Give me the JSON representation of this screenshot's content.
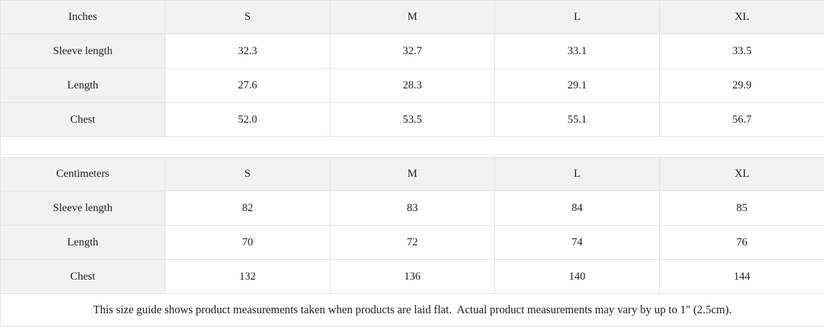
{
  "tables": [
    {
      "unit_label": "Inches",
      "size_headers": [
        "S",
        "M",
        "L",
        "XL"
      ],
      "rows": [
        {
          "label": "Sleeve length",
          "values": [
            "32.3",
            "32.7",
            "33.1",
            "33.5"
          ]
        },
        {
          "label": "Length",
          "values": [
            "27.6",
            "28.3",
            "29.1",
            "29.9"
          ]
        },
        {
          "label": "Chest",
          "values": [
            "52.0",
            "53.5",
            "55.1",
            "56.7"
          ]
        }
      ]
    },
    {
      "unit_label": "Centimeters",
      "size_headers": [
        "S",
        "M",
        "L",
        "XL"
      ],
      "rows": [
        {
          "label": "Sleeve length",
          "values": [
            "82",
            "83",
            "84",
            "85"
          ]
        },
        {
          "label": "Length",
          "values": [
            "70",
            "72",
            "74",
            "76"
          ]
        },
        {
          "label": "Chest",
          "values": [
            "132",
            "136",
            "140",
            "144"
          ]
        }
      ]
    }
  ],
  "footnote": "This size guide shows product measurements taken when products are laid flat.  Actual product measurements may vary by up to 1\" (2.5cm).",
  "colors": {
    "header_bg": "#f1f1f1",
    "border": "#e1e1e1",
    "text": "#1c1c1c"
  }
}
